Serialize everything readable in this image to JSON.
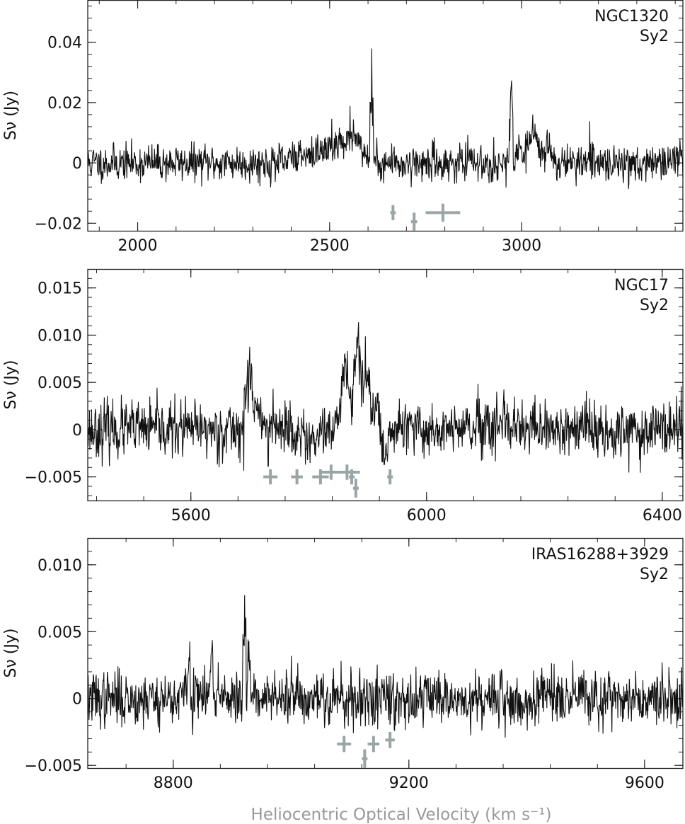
{
  "chart_data": [
    {
      "type": "line",
      "ylabel": "Sν (Jy)",
      "galaxy": "NGC1320",
      "class": "Sy2",
      "xlim": [
        1870,
        3420
      ],
      "ylim": [
        -0.0225,
        0.054
      ],
      "xticks": [
        2000,
        2500,
        3000
      ],
      "xtick_labels": [
        "2000",
        "2500",
        "3000"
      ],
      "yticks": [
        -0.02,
        0,
        0.02,
        0.04
      ],
      "ytick_labels": [
        "−0.02",
        "0",
        "0.02",
        "0.04"
      ],
      "noise": 0.0035,
      "seed": 11,
      "features": [
        {
          "x0": 2400,
          "x1": 2475,
          "h": 0.004
        },
        {
          "x0": 2475,
          "x1": 2600,
          "h": 0.008
        },
        {
          "x0": 2540,
          "x1": 2580,
          "h": 0.006
        },
        {
          "x0": 2605,
          "x1": 2614,
          "h": 0.033
        },
        {
          "x0": 2968,
          "x1": 2978,
          "h": 0.025
        },
        {
          "x0": 2985,
          "x1": 3080,
          "h": 0.007
        },
        {
          "x0": 3020,
          "x1": 3040,
          "h": 0.007
        }
      ],
      "markers": [
        {
          "x": 2665,
          "y": -0.0165,
          "dx": 0,
          "dy": 0.0025
        },
        {
          "x": 2720,
          "y": -0.0195,
          "dx": 8,
          "dy": 0.003
        },
        {
          "x": 2795,
          "y": -0.0165,
          "dx": 45,
          "dy": 0.003
        }
      ]
    },
    {
      "type": "line",
      "ylabel": "Sν (Jy)",
      "galaxy": "NGC17",
      "class": "Sy2",
      "xlim": [
        5425,
        6435
      ],
      "ylim": [
        -0.0075,
        0.017
      ],
      "xticks": [
        5600,
        6000,
        6400
      ],
      "xtick_labels": [
        "5600",
        "6000",
        "6400"
      ],
      "yticks": [
        -0.005,
        0,
        0.005,
        0.01,
        0.015
      ],
      "ytick_labels": [
        "−0.005",
        "0",
        "0.005",
        "0.010",
        "0.015"
      ],
      "noise": 0.0017,
      "seed": 23,
      "features": [
        {
          "x0": 5690,
          "x1": 5705,
          "h": 0.006
        },
        {
          "x0": 5705,
          "x1": 5720,
          "h": 0.003
        },
        {
          "x0": 5850,
          "x1": 5875,
          "h": 0.006
        },
        {
          "x0": 5875,
          "x1": 5890,
          "h": 0.011
        },
        {
          "x0": 5890,
          "x1": 5905,
          "h": 0.008
        },
        {
          "x0": 5905,
          "x1": 5920,
          "h": 0.003
        },
        {
          "x0": 5920,
          "x1": 5935,
          "h": -0.003
        }
      ],
      "markers": [
        {
          "x": 5735,
          "y": -0.005,
          "dx": 12,
          "dy": 0.0008
        },
        {
          "x": 5780,
          "y": -0.005,
          "dx": 10,
          "dy": 0.0008
        },
        {
          "x": 5820,
          "y": -0.005,
          "dx": 14,
          "dy": 0.0008
        },
        {
          "x": 5838,
          "y": -0.0045,
          "dx": 18,
          "dy": 0.0008
        },
        {
          "x": 5865,
          "y": -0.0045,
          "dx": 22,
          "dy": 0.0008
        },
        {
          "x": 5873,
          "y": -0.005,
          "dx": 4,
          "dy": 0.0008
        },
        {
          "x": 5880,
          "y": -0.0062,
          "dx": 3,
          "dy": 0.001
        },
        {
          "x": 5938,
          "y": -0.005,
          "dx": 0,
          "dy": 0.0008
        }
      ]
    },
    {
      "type": "line",
      "ylabel": "Sν (Jy)",
      "galaxy": "IRAS16288+3929",
      "class": "Sy2",
      "xlim": [
        8655,
        9665
      ],
      "ylim": [
        -0.0052,
        0.012
      ],
      "xticks": [
        8800,
        9200,
        9600
      ],
      "xtick_labels": [
        "8800",
        "9200",
        "9600"
      ],
      "yticks": [
        -0.005,
        0,
        0.005,
        0.01
      ],
      "ytick_labels": [
        "−0.005",
        "0",
        "0.005",
        "0.010"
      ],
      "noise": 0.0012,
      "seed": 37,
      "features": [
        {
          "x0": 8820,
          "x1": 8830,
          "h": 0.003
        },
        {
          "x0": 8860,
          "x1": 8868,
          "h": 0.004
        },
        {
          "x0": 8917,
          "x1": 8924,
          "h": 0.007
        },
        {
          "x0": 8924,
          "x1": 8932,
          "h": 0.004
        }
      ],
      "markers": [
        {
          "x": 9090,
          "y": -0.0034,
          "dx": 12,
          "dy": 0.0006
        },
        {
          "x": 9125,
          "y": -0.0045,
          "dx": 4,
          "dy": 0.0007
        },
        {
          "x": 9140,
          "y": -0.0034,
          "dx": 10,
          "dy": 0.0006
        },
        {
          "x": 9168,
          "y": -0.0031,
          "dx": 8,
          "dy": 0.0006
        }
      ]
    }
  ],
  "xtitle": "Heliocentric Optical Velocity (km s⁻¹)"
}
